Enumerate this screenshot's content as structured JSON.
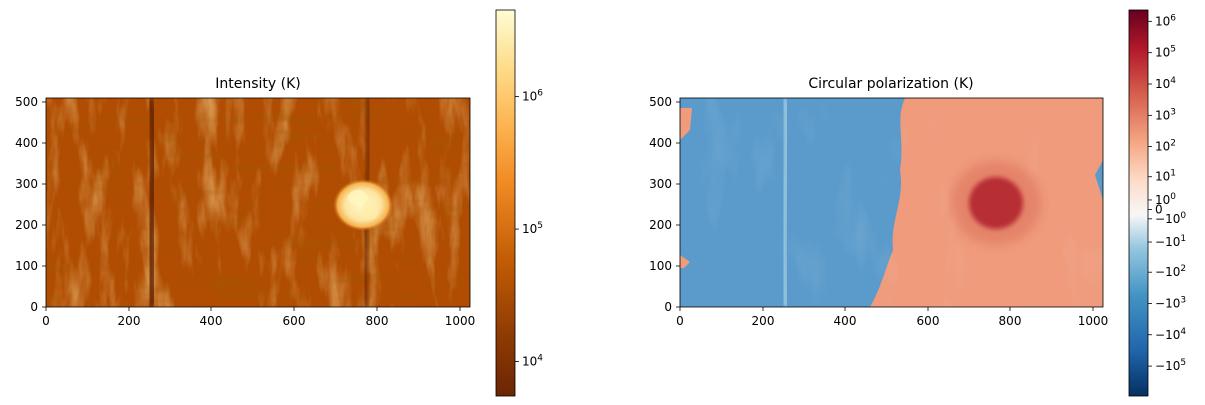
{
  "chart_data": [
    {
      "type": "heatmap",
      "title": "Intensity (K)",
      "xlim": [
        0,
        1024
      ],
      "ylim": [
        0,
        512
      ],
      "xticks": [
        "0",
        "200",
        "400",
        "600",
        "800",
        "1000"
      ],
      "yticks": [
        "0",
        "100",
        "200",
        "300",
        "400",
        "500"
      ],
      "colormap": "YlOrBr_r",
      "colorbar": {
        "scale": "log",
        "range": [
          5500,
          4500000
        ],
        "ticks": [
          {
            "value": 10000,
            "base": "10",
            "exp": "4"
          },
          {
            "value": 100000,
            "base": "10",
            "exp": "5"
          },
          {
            "value": 1000000,
            "base": "10",
            "exp": "6"
          }
        ]
      },
      "colors": [
        "#6b2604",
        "#8c3a03",
        "#b04d02",
        "#d4680a",
        "#f08a22",
        "#fdb350",
        "#fedc8a",
        "#fffcd4"
      ],
      "features": [
        {
          "name": "sunspot",
          "x": 768,
          "y": 260,
          "r": 65
        },
        {
          "name": "dark-lane",
          "x": 255,
          "y": 270
        },
        {
          "name": "dark-lane",
          "x": 780,
          "y": 260
        }
      ]
    },
    {
      "type": "heatmap",
      "title": "Circular polarization (K)",
      "xlim": [
        0,
        1024
      ],
      "ylim": [
        0,
        512
      ],
      "xticks": [
        "0",
        "200",
        "400",
        "600",
        "800",
        "1000"
      ],
      "yticks": [
        "0",
        "100",
        "200",
        "300",
        "400",
        "500"
      ],
      "colormap": "RdBu_r",
      "colorbar": {
        "scale": "symlog",
        "range": [
          -900000,
          2300000
        ],
        "ticks": [
          {
            "value": 1000000,
            "sign": "",
            "base": "10",
            "exp": "6"
          },
          {
            "value": 100000,
            "sign": "",
            "base": "10",
            "exp": "5"
          },
          {
            "value": 10000,
            "sign": "",
            "base": "10",
            "exp": "4"
          },
          {
            "value": 1000,
            "sign": "",
            "base": "10",
            "exp": "3"
          },
          {
            "value": 100,
            "sign": "",
            "base": "10",
            "exp": "2"
          },
          {
            "value": 10,
            "sign": "",
            "base": "10",
            "exp": "1"
          },
          {
            "value": 1,
            "sign": "",
            "base": "10",
            "exp": "0"
          },
          {
            "value": 0,
            "plain": "0"
          },
          {
            "value": -1,
            "sign": "−",
            "base": "10",
            "exp": "0"
          },
          {
            "value": -10,
            "sign": "−",
            "base": "10",
            "exp": "1"
          },
          {
            "value": -100,
            "sign": "−",
            "base": "10",
            "exp": "2"
          },
          {
            "value": -1000,
            "sign": "−",
            "base": "10",
            "exp": "3"
          },
          {
            "value": -10000,
            "sign": "−",
            "base": "10",
            "exp": "4"
          },
          {
            "value": -100000,
            "sign": "−",
            "base": "10",
            "exp": "5"
          }
        ]
      },
      "colors": [
        "#053061",
        "#2166ac",
        "#4393c3",
        "#92c5de",
        "#f7f7f7",
        "#f4a582",
        "#d6604d",
        "#b2182b",
        "#67001f"
      ],
      "features": [
        {
          "name": "sunspot",
          "x": 770,
          "y": 255,
          "r": 70
        },
        {
          "name": "polarity-boundary"
        }
      ]
    }
  ]
}
